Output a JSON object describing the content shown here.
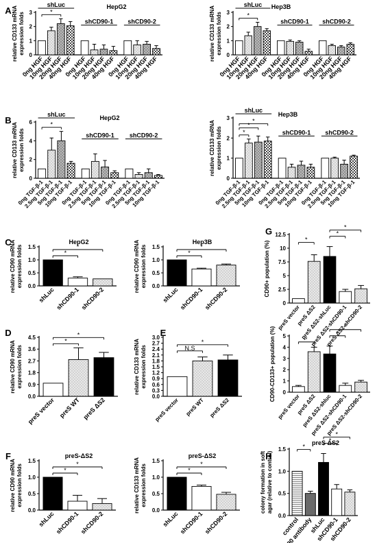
{
  "chart_data": [
    {
      "panel": "A",
      "title": "HepG2",
      "type": "bar",
      "ylabel": "relative CD133 mRNA expression folds",
      "ylim": [
        0,
        3
      ],
      "yticks": [
        0,
        1,
        2,
        3
      ],
      "categories": [
        "0ng HGF",
        "10ng HGF",
        "20ng HGF",
        "40ng HGF",
        "0ng HGF",
        "10ng HGF",
        "20ng HGF",
        "40ng HGF",
        "0ng HGF",
        "10ng HGF",
        "20ng HGF",
        "40ng HGF"
      ],
      "values": [
        1.0,
        1.7,
        2.2,
        2.05,
        1.0,
        0.35,
        0.4,
        0.3,
        1.0,
        0.7,
        0.75,
        0.45
      ],
      "errors": [
        0,
        0.25,
        0.35,
        0.3,
        0,
        0.4,
        0.3,
        0.3,
        0,
        0.3,
        0.2,
        0.2
      ],
      "groups": [
        {
          "label": "shLuc",
          "start": 0,
          "end": 3
        },
        {
          "label": "shCD90-1",
          "start": 4,
          "end": 7
        },
        {
          "label": "shCD90-2",
          "start": 8,
          "end": 11
        }
      ],
      "significance": [
        {
          "a": 0,
          "b": 2,
          "label": "*"
        }
      ]
    },
    {
      "panel": "",
      "title": "Hep3B",
      "type": "bar",
      "ylabel": "relative CD133 mRNA expression folds",
      "ylim": [
        0,
        3
      ],
      "yticks": [
        0,
        1,
        2,
        3
      ],
      "categories": [
        "0ng HGF",
        "10ng HGF",
        "20ng HGF",
        "40ng HGF",
        "0ng HGF",
        "10ng HGF",
        "20ng HGF",
        "40ng HGF",
        "0ng HGF",
        "10ng HGF",
        "20ng HGF",
        "40ng HGF"
      ],
      "values": [
        1.0,
        1.35,
        2.0,
        1.7,
        1.0,
        0.95,
        0.9,
        0.25,
        1.0,
        0.65,
        0.55,
        0.75
      ],
      "errors": [
        0,
        0.25,
        0.3,
        0.15,
        0,
        0.1,
        0.1,
        0.15,
        0,
        0.1,
        0.1,
        0.1
      ],
      "groups": [
        {
          "label": "shLuc",
          "start": 0,
          "end": 3
        },
        {
          "label": "shCD90-1",
          "start": 4,
          "end": 7
        },
        {
          "label": "shCD90-2",
          "start": 8,
          "end": 11
        }
      ],
      "significance": [
        {
          "a": 0,
          "b": 2,
          "label": "*"
        }
      ]
    },
    {
      "panel": "B",
      "title": "HepG2",
      "type": "bar",
      "ylabel": "relative CD133 mRNA expression folds",
      "ylim": [
        0,
        6
      ],
      "yticks": [
        0,
        2,
        4,
        6
      ],
      "categories": [
        "0ng TGF-β-1",
        "2.5ng TGF-β-1",
        "5ng TGF-β-1",
        "10ng TGF-β-1",
        "0ng TGF-β-1",
        "2.5ng TGF-β-1",
        "5ng TGF-β-1",
        "10ng TGF-β-1",
        "0ng TGF-β-1",
        "2.5ng TGF-β-1",
        "5ng TGF-β-1",
        "10ng TGF-β-1"
      ],
      "values": [
        1.0,
        3.0,
        4.0,
        1.6,
        1.0,
        1.8,
        1.2,
        0.6,
        1.0,
        0.4,
        0.6,
        0.3
      ],
      "errors": [
        0,
        1.3,
        1.0,
        0.2,
        0,
        0.8,
        0.7,
        0.2,
        0,
        0.2,
        0.4,
        0.1
      ],
      "groups": [
        {
          "label": "shLuc",
          "start": 0,
          "end": 3
        },
        {
          "label": "shCD90-1",
          "start": 4,
          "end": 7
        },
        {
          "label": "shCD90-2",
          "start": 8,
          "end": 11
        }
      ],
      "significance": [
        {
          "a": 0,
          "b": 2,
          "label": "*"
        }
      ]
    },
    {
      "panel": "",
      "title": "Hep3B",
      "type": "bar",
      "ylabel": "relative CD133 mRNA expression folds",
      "ylim": [
        0,
        3
      ],
      "yticks": [
        0,
        1,
        2,
        3
      ],
      "categories": [
        "0ng TGF-β-1",
        "2.5ng TGF-β-1",
        "5ng TGF-β-1",
        "10ng TGF-β-1",
        "0ng TGF-β-1",
        "2.5ng TGF-β-1",
        "5ng TGF-β-1",
        "10ng TGF-β-1",
        "0ng TGF-β-1",
        "2.5ng TGF-β-1",
        "5ng TGF-β-1",
        "10ng TGF-β-1"
      ],
      "values": [
        1.0,
        1.75,
        1.8,
        1.85,
        1.0,
        0.55,
        0.65,
        0.55,
        1.0,
        1.0,
        0.7,
        1.1
      ],
      "errors": [
        0,
        0.2,
        0.3,
        0.2,
        0,
        0.15,
        0.2,
        0.15,
        0,
        0.05,
        0.2,
        0.05
      ],
      "groups": [
        {
          "label": "shLuc",
          "start": 0,
          "end": 3
        },
        {
          "label": "shCD90-1",
          "start": 4,
          "end": 7
        },
        {
          "label": "shCD90-2",
          "start": 8,
          "end": 11
        }
      ],
      "significance": [
        {
          "a": 0,
          "b": 1,
          "label": "*"
        },
        {
          "a": 0,
          "b": 2,
          "label": "*"
        },
        {
          "a": 0,
          "b": 3,
          "label": "*"
        }
      ]
    },
    {
      "panel": "C",
      "title": "HepG2",
      "type": "bar",
      "ylabel": "relative CD90 mRNA expression folds",
      "ylim": [
        0,
        1.5
      ],
      "yticks": [
        0.0,
        0.5,
        1.0,
        1.5
      ],
      "categories": [
        "shLuc",
        "shCD90-1",
        "shCD90-2"
      ],
      "values": [
        1.0,
        0.3,
        0.27
      ],
      "errors": [
        0,
        0.05,
        0
      ],
      "significance": [
        {
          "a": 0,
          "b": 1,
          "label": "*"
        },
        {
          "a": 0,
          "b": 2,
          "label": "*"
        }
      ]
    },
    {
      "panel": "",
      "title": "Hep3B",
      "type": "bar",
      "ylabel": "relative CD90 mRNA expression folds",
      "ylim": [
        0,
        1.5
      ],
      "yticks": [
        0.0,
        0.5,
        1.0,
        1.5
      ],
      "categories": [
        "shLuc",
        "shCD90-1",
        "shCD90-2"
      ],
      "values": [
        1.0,
        0.65,
        0.8
      ],
      "errors": [
        0,
        0.03,
        0.04
      ],
      "significance": [
        {
          "a": 0,
          "b": 1,
          "label": "*"
        },
        {
          "a": 0,
          "b": 2,
          "label": "*"
        }
      ]
    },
    {
      "panel": "D",
      "title": "",
      "type": "bar",
      "ylabel": "relative CD90 mRNA expression folds",
      "ylim": [
        0,
        4.5
      ],
      "yticks": [
        0.0,
        0.9,
        1.8,
        2.7,
        3.6,
        4.5
      ],
      "categories": [
        "preS vector",
        "preS WT",
        "preS ΔS2"
      ],
      "values": [
        1.0,
        2.8,
        2.95
      ],
      "errors": [
        0,
        0.9,
        0.4
      ],
      "significance": [
        {
          "a": 0,
          "b": 1,
          "label": "*"
        },
        {
          "a": 0,
          "b": 2,
          "label": "*"
        }
      ]
    },
    {
      "panel": "E",
      "title": "",
      "type": "bar",
      "ylabel": "relative CD133 mRNA expression folds",
      "ylim": [
        0,
        3.0
      ],
      "yticks": [
        0.0,
        0.3,
        0.6,
        0.9,
        1.2,
        1.5,
        1.8,
        2.1,
        2.4,
        2.7,
        3.0
      ],
      "categories": [
        "preS vector",
        "preS WT",
        "preS ΔS2"
      ],
      "values": [
        1.0,
        1.8,
        1.85
      ],
      "errors": [
        0,
        0.2,
        0.25
      ],
      "significance": [
        {
          "a": 0,
          "b": 1,
          "label": "N.S"
        },
        {
          "a": 0,
          "b": 2,
          "label": "*"
        }
      ]
    },
    {
      "panel": "F",
      "title": "preS-ΔS2",
      "type": "bar",
      "ylabel": "relative CD90 mRNA expression folds",
      "ylim": [
        0,
        1.5
      ],
      "yticks": [
        0.0,
        0.5,
        1.0,
        1.5
      ],
      "categories": [
        "shLuc",
        "shCD90-1",
        "shCD90-2"
      ],
      "values": [
        1.0,
        0.27,
        0.2
      ],
      "errors": [
        0,
        0.18,
        0.15
      ],
      "significance": [
        {
          "a": 0,
          "b": 1,
          "label": "*"
        },
        {
          "a": 0,
          "b": 2,
          "label": "*"
        }
      ]
    },
    {
      "panel": "",
      "title": "preS-ΔS2",
      "type": "bar",
      "ylabel": "relative CD133 mRNA expression folds",
      "ylim": [
        0,
        1.5
      ],
      "yticks": [
        0.0,
        0.5,
        1.0,
        1.5
      ],
      "categories": [
        "shLuc",
        "shCD90-1",
        "shCD90-2"
      ],
      "values": [
        1.0,
        0.72,
        0.48
      ],
      "errors": [
        0,
        0.04,
        0.06
      ],
      "significance": [
        {
          "a": 0,
          "b": 1,
          "label": "*"
        },
        {
          "a": 0,
          "b": 2,
          "label": "*"
        }
      ]
    },
    {
      "panel": "G",
      "title": "",
      "type": "bar",
      "ylabel": "CD90+ population (%)",
      "ylim": [
        0,
        12.5
      ],
      "yticks": [
        0.0,
        2.5,
        5.0,
        7.5,
        10.0,
        12.5
      ],
      "categories": [
        "preS vector",
        "preS ΔS2",
        "preS ΔS2-shLuc",
        "preS ΔS2-shCD90-1",
        "preS ΔS2-shCD90-2"
      ],
      "values": [
        0.8,
        7.6,
        8.5,
        2.1,
        2.6
      ],
      "errors": [
        0,
        1.2,
        1.8,
        0.4,
        0.6
      ],
      "significance": [
        {
          "a": 0,
          "b": 1,
          "label": "*"
        },
        {
          "a": 2,
          "b": 3,
          "label": "*"
        },
        {
          "a": 2,
          "b": 4,
          "label": "*"
        }
      ]
    },
    {
      "panel": "",
      "title": "",
      "type": "bar",
      "ylabel": "CD90-CD133+ population (%)",
      "ylim": [
        0,
        5
      ],
      "yticks": [
        0,
        1,
        2,
        3,
        4,
        5
      ],
      "categories": [
        "preS vector",
        "preS ΔS2",
        "preS ΔS2-shluc",
        "preS ΔS2-shCD90-1",
        "preS ΔS2-shCD90-2"
      ],
      "values": [
        0.5,
        3.6,
        3.4,
        0.6,
        0.9
      ],
      "errors": [
        0.1,
        0.4,
        0.7,
        0.2,
        0.15
      ],
      "significance": [
        {
          "a": 0,
          "b": 1,
          "label": "*"
        },
        {
          "a": 2,
          "b": 3,
          "label": "*"
        },
        {
          "a": 2,
          "b": 4,
          "label": "*"
        }
      ]
    },
    {
      "panel": "H",
      "title": "preS ΔS2",
      "type": "bar",
      "ylabel": "colony formation in soft agar (relative to control)",
      "ylim": [
        0,
        1.5
      ],
      "yticks": [
        0.0,
        0.5,
        1.0,
        1.5
      ],
      "categories": [
        "control",
        "CD90 antibody",
        "shLuc",
        "shCD90-1",
        "shCD90-2"
      ],
      "values": [
        1.0,
        0.5,
        1.2,
        0.6,
        0.53
      ],
      "errors": [
        0,
        0.05,
        0.2,
        0.1,
        0.05
      ],
      "significance": [
        {
          "a": 0,
          "b": 1,
          "label": "*"
        },
        {
          "a": 2,
          "b": 3,
          "label": "*"
        },
        {
          "a": 2,
          "b": 4,
          "label": "*"
        }
      ]
    }
  ]
}
